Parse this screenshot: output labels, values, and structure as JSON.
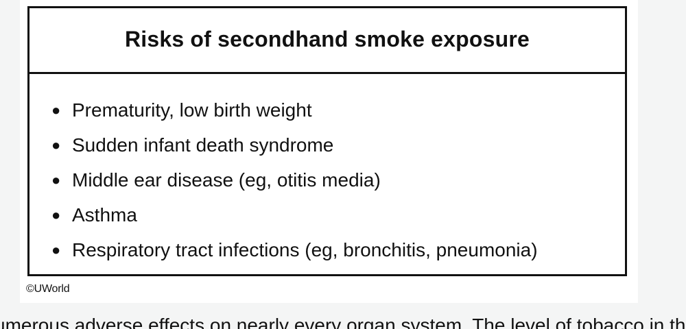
{
  "table": {
    "title": "Risks of secondhand smoke exposure",
    "items": [
      "Prematurity, low birth weight",
      "Sudden infant death syndrome",
      "Middle ear disease (eg, otitis media)",
      "Asthma",
      "Respiratory tract infections (eg, bronchitis, pneumonia)"
    ]
  },
  "copyright": "©UWorld",
  "body_text": "umerous adverse effects on nearly every organ system.  The level of tobacco in th",
  "colors": {
    "page_background": "#f4f5f5",
    "card_background": "#ffffff",
    "border": "#111111",
    "text": "#111111"
  }
}
